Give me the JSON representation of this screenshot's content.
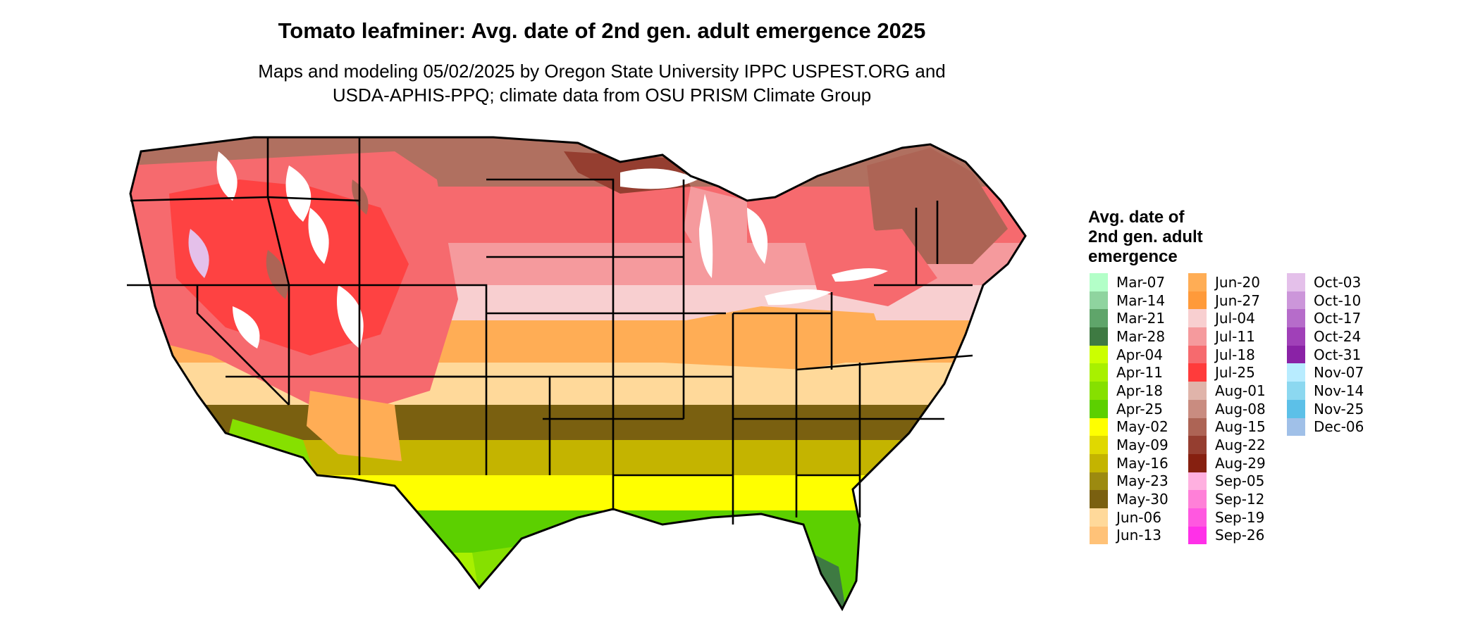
{
  "title": "Tomato leafminer: Avg. date of 2nd gen. adult emergence 2025",
  "subtitle": {
    "line1": "Maps and modeling 05/02/2025 by Oregon State University IPPC USPEST.ORG and",
    "line2": "USDA-APHIS-PPQ; climate data from OSU PRISM Climate Group"
  },
  "legend": {
    "title_lines": [
      "Avg. date of",
      "2nd gen. adult",
      "emergence"
    ],
    "columns": [
      [
        {
          "label": "Mar-07",
          "color": "#b3ffc8"
        },
        {
          "label": "Mar-14",
          "color": "#8fd49f"
        },
        {
          "label": "Mar-21",
          "color": "#5fa56a"
        },
        {
          "label": "Mar-28",
          "color": "#3e7a42"
        },
        {
          "label": "Apr-04",
          "color": "#ccff00"
        },
        {
          "label": "Apr-11",
          "color": "#a8f000"
        },
        {
          "label": "Apr-18",
          "color": "#86e000"
        },
        {
          "label": "Apr-25",
          "color": "#5cd000"
        },
        {
          "label": "May-02",
          "color": "#ffff00"
        },
        {
          "label": "May-09",
          "color": "#e0d800"
        },
        {
          "label": "May-16",
          "color": "#c4b400"
        },
        {
          "label": "May-23",
          "color": "#9c8a10"
        },
        {
          "label": "May-30",
          "color": "#7a6010"
        },
        {
          "label": "Jun-06",
          "color": "#ffd99a"
        },
        {
          "label": "Jun-13",
          "color": "#ffc278"
        }
      ],
      [
        {
          "label": "Jun-20",
          "color": "#ffad55"
        },
        {
          "label": "Jun-27",
          "color": "#ff9a3a"
        },
        {
          "label": "Jul-04",
          "color": "#f8cfd0"
        },
        {
          "label": "Jul-11",
          "color": "#f59a9d"
        },
        {
          "label": "Jul-18",
          "color": "#f66a6e"
        },
        {
          "label": "Jul-25",
          "color": "#ff3b3b"
        },
        {
          "label": "Aug-01",
          "color": "#e0b4aa"
        },
        {
          "label": "Aug-08",
          "color": "#c98c80"
        },
        {
          "label": "Aug-15",
          "color": "#ad6455"
        },
        {
          "label": "Aug-22",
          "color": "#953e30"
        },
        {
          "label": "Aug-29",
          "color": "#862010"
        },
        {
          "label": "Sep-05",
          "color": "#ffb0e0"
        },
        {
          "label": "Sep-12",
          "color": "#ff80d8"
        },
        {
          "label": "Sep-19",
          "color": "#ff58e0"
        },
        {
          "label": "Sep-26",
          "color": "#ff30e8"
        }
      ],
      [
        {
          "label": "Oct-03",
          "color": "#e4c0ea"
        },
        {
          "label": "Oct-10",
          "color": "#cc96da"
        },
        {
          "label": "Oct-17",
          "color": "#b66cca"
        },
        {
          "label": "Oct-24",
          "color": "#a040b8"
        },
        {
          "label": "Oct-31",
          "color": "#8a22a6"
        },
        {
          "label": "Nov-07",
          "color": "#b8ecff"
        },
        {
          "label": "Nov-14",
          "color": "#8cd8f0"
        },
        {
          "label": "Nov-25",
          "color": "#5cc0e8"
        },
        {
          "label": "Dec-06",
          "color": "#a0c0e8"
        }
      ]
    ]
  }
}
